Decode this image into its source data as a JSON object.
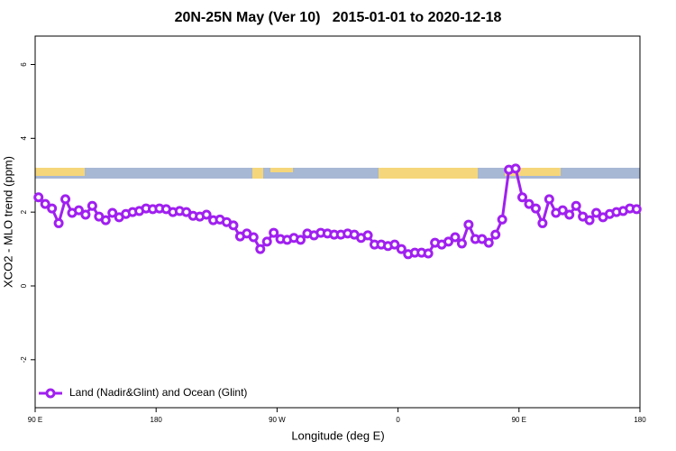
{
  "chart_data": {
    "type": "line",
    "title": "20N-25N May (Ver 10)   2015-01-01 to 2020-12-18",
    "x_label": "Longitude (deg E)",
    "y_label": "XCO2 - MLO trend (ppm)",
    "x": [
      92.5,
      97.5,
      102.5,
      107.5,
      112.5,
      117.5,
      122.5,
      127.5,
      132.5,
      137.5,
      142.5,
      147.5,
      152.5,
      157.5,
      162.5,
      167.5,
      172.5,
      177.5,
      182.5,
      187.5,
      192.5,
      197.5,
      202.5,
      207.5,
      212.5,
      217.5,
      222.5,
      227.5,
      232.5,
      237.5,
      242.5,
      247.5,
      252.5,
      257.5,
      262.5,
      267.5,
      272.5,
      277.5,
      282.5,
      287.5,
      292.5,
      297.5,
      302.5,
      307.5,
      312.5,
      317.5,
      322.5,
      327.5,
      332.5,
      337.5,
      342.5,
      347.5,
      352.5,
      357.5,
      362.5,
      367.5,
      372.5,
      377.5,
      382.5,
      387.5,
      392.5,
      397.5,
      402.5,
      407.5,
      412.5,
      417.5,
      422.5,
      427.5,
      432.5,
      437.5,
      442.5,
      447.5,
      452.5,
      457.5,
      462.5,
      467.5,
      472.5,
      477.5,
      482.5,
      487.5,
      492.5,
      497.5,
      502.5,
      507.5,
      512.5,
      517.5,
      522.5,
      527.5,
      532.5,
      537.5
    ],
    "series": [
      {
        "name": "Land (Nadir&Glint) and Ocean (Glint)",
        "color": "#a020f0",
        "values": [
          2.4,
          2.22,
          2.1,
          1.7,
          2.35,
          1.98,
          2.05,
          1.93,
          2.17,
          1.88,
          1.78,
          1.98,
          1.86,
          1.95,
          2.0,
          2.03,
          2.1,
          2.08,
          2.1,
          2.08,
          2.0,
          2.03,
          2.0,
          1.9,
          1.88,
          1.93,
          1.78,
          1.8,
          1.73,
          1.64,
          1.34,
          1.42,
          1.32,
          1.0,
          1.2,
          1.44,
          1.27,
          1.25,
          1.3,
          1.25,
          1.42,
          1.37,
          1.44,
          1.42,
          1.39,
          1.39,
          1.42,
          1.39,
          1.3,
          1.37,
          1.12,
          1.12,
          1.08,
          1.12,
          1.0,
          0.86,
          0.9,
          0.9,
          0.88,
          1.17,
          1.12,
          1.2,
          1.32,
          1.15,
          1.66,
          1.27,
          1.27,
          1.17,
          1.39,
          1.8,
          3.15,
          3.18,
          2.4,
          2.22,
          2.1,
          1.7,
          2.35,
          1.98,
          2.05,
          1.93,
          2.17,
          1.88,
          1.78,
          1.98,
          1.86,
          1.95,
          2.0,
          2.03,
          2.1,
          2.08
        ]
      }
    ],
    "xlim": [
      90,
      540
    ],
    "xticks": [
      {
        "value": 90,
        "label": "90 E"
      },
      180,
      {
        "value": 270,
        "label": "90 W"
      },
      {
        "value": 360,
        "label": "0"
      },
      {
        "value": 450,
        "label": "90 E"
      },
      {
        "value": 540,
        "label": "180"
      }
    ],
    "ylim": [
      -3.3,
      6.77
    ],
    "yticks": [
      -2,
      0,
      2,
      4,
      6
    ],
    "legend": "bottom-left"
  }
}
